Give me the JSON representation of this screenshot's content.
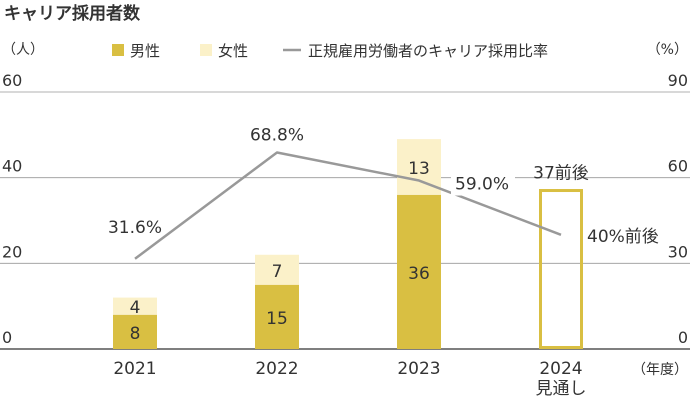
{
  "chart_data": {
    "type": "bar",
    "title": "キャリア採用者数",
    "y_left_unit": "（人）",
    "y_right_unit": "（%）",
    "x_unit": "（年度）",
    "categories": [
      "2021",
      "2022",
      "2023",
      "2024"
    ],
    "category_sublabels": [
      "",
      "",
      "",
      "見通し"
    ],
    "ylim": [
      0,
      60
    ],
    "yticks": [
      0,
      20,
      40,
      60
    ],
    "y2lim": [
      0,
      90
    ],
    "y2ticks": [
      0,
      30,
      60,
      90
    ],
    "series": [
      {
        "name": "男性",
        "type": "bar",
        "stack": "total",
        "color": "#d9bf42",
        "values": [
          8,
          15,
          36,
          null
        ],
        "labels": [
          "8",
          "15",
          "36",
          ""
        ]
      },
      {
        "name": "女性",
        "type": "bar",
        "stack": "total",
        "color": "#fbf1c9",
        "values": [
          4,
          7,
          13,
          null
        ],
        "labels": [
          "4",
          "7",
          "13",
          ""
        ]
      },
      {
        "name": "正規雇用労働者のキャリア採用比率",
        "type": "line",
        "axis": "right",
        "color": "#999999",
        "values": [
          31.6,
          68.8,
          59.0,
          40
        ],
        "labels": [
          "31.6%",
          "68.8%",
          "59.0%",
          "40%前後"
        ]
      }
    ],
    "forecast_bar": {
      "category": "2024",
      "value": 37,
      "label": "37前後",
      "outline_color": "#d9bf42"
    },
    "grid": true,
    "legend_position": "top"
  }
}
